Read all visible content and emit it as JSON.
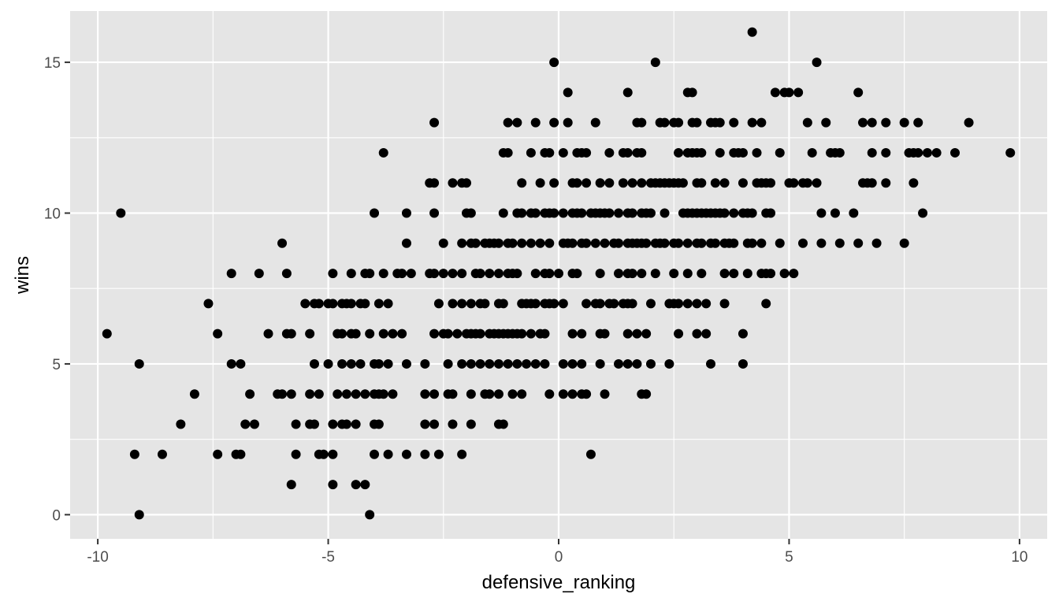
{
  "colors": {
    "panel_background": "#e5e5e5",
    "grid_major": "#ffffff",
    "point": "#000000",
    "tick_text": "#4d4d4d"
  },
  "chart_data": {
    "type": "scatter",
    "title": "",
    "xlabel": "defensive_ranking",
    "ylabel": "wins",
    "xlim": [
      -10.6,
      10.6
    ],
    "ylim": [
      -0.8,
      16.7
    ],
    "x_ticks": [
      -10,
      -5,
      0,
      5,
      10
    ],
    "x_tick_labels": [
      "-10",
      "-5",
      "0",
      "5",
      "10"
    ],
    "y_ticks": [
      0,
      5,
      10,
      15
    ],
    "y_tick_labels": [
      "0",
      "5",
      "10",
      "15"
    ],
    "grid": true,
    "legend": "none",
    "points": [
      [
        4.2,
        16
      ],
      [
        -0.1,
        15
      ],
      [
        2.1,
        15
      ],
      [
        5.6,
        15
      ],
      [
        0.2,
        14
      ],
      [
        1.5,
        14
      ],
      [
        2.8,
        14
      ],
      [
        2.9,
        14
      ],
      [
        4.7,
        14
      ],
      [
        4.9,
        14
      ],
      [
        5.0,
        14
      ],
      [
        5.2,
        14
      ],
      [
        6.5,
        14
      ],
      [
        -2.7,
        13
      ],
      [
        -1.1,
        13
      ],
      [
        -0.9,
        13
      ],
      [
        -0.5,
        13
      ],
      [
        -0.1,
        13
      ],
      [
        0.2,
        13
      ],
      [
        0.8,
        13
      ],
      [
        1.7,
        13
      ],
      [
        1.8,
        13
      ],
      [
        2.2,
        13
      ],
      [
        2.3,
        13
      ],
      [
        2.5,
        13
      ],
      [
        2.6,
        13
      ],
      [
        2.9,
        13
      ],
      [
        3.0,
        13
      ],
      [
        3.3,
        13
      ],
      [
        3.4,
        13
      ],
      [
        3.5,
        13
      ],
      [
        3.8,
        13
      ],
      [
        4.2,
        13
      ],
      [
        4.4,
        13
      ],
      [
        5.4,
        13
      ],
      [
        5.8,
        13
      ],
      [
        6.6,
        13
      ],
      [
        6.8,
        13
      ],
      [
        7.1,
        13
      ],
      [
        7.5,
        13
      ],
      [
        7.8,
        13
      ],
      [
        8.9,
        13
      ],
      [
        -3.8,
        12
      ],
      [
        -1.2,
        12
      ],
      [
        -1.1,
        12
      ],
      [
        -0.6,
        12
      ],
      [
        -0.3,
        12
      ],
      [
        -0.2,
        12
      ],
      [
        0.1,
        12
      ],
      [
        0.4,
        12
      ],
      [
        0.5,
        12
      ],
      [
        0.6,
        12
      ],
      [
        1.1,
        12
      ],
      [
        1.4,
        12
      ],
      [
        1.5,
        12
      ],
      [
        1.7,
        12
      ],
      [
        1.8,
        12
      ],
      [
        2.6,
        12
      ],
      [
        2.8,
        12
      ],
      [
        2.9,
        12
      ],
      [
        3.0,
        12
      ],
      [
        3.1,
        12
      ],
      [
        3.5,
        12
      ],
      [
        3.8,
        12
      ],
      [
        3.9,
        12
      ],
      [
        4.0,
        12
      ],
      [
        4.3,
        12
      ],
      [
        4.8,
        12
      ],
      [
        5.5,
        12
      ],
      [
        5.9,
        12
      ],
      [
        6.0,
        12
      ],
      [
        6.1,
        12
      ],
      [
        6.8,
        12
      ],
      [
        7.1,
        12
      ],
      [
        7.6,
        12
      ],
      [
        7.7,
        12
      ],
      [
        7.8,
        12
      ],
      [
        8.0,
        12
      ],
      [
        8.2,
        12
      ],
      [
        8.6,
        12
      ],
      [
        9.8,
        12
      ],
      [
        -2.8,
        11
      ],
      [
        -2.7,
        11
      ],
      [
        -2.3,
        11
      ],
      [
        -2.1,
        11
      ],
      [
        -2.0,
        11
      ],
      [
        -0.8,
        11
      ],
      [
        -0.4,
        11
      ],
      [
        -0.1,
        11
      ],
      [
        0.3,
        11
      ],
      [
        0.4,
        11
      ],
      [
        0.6,
        11
      ],
      [
        0.9,
        11
      ],
      [
        1.1,
        11
      ],
      [
        1.4,
        11
      ],
      [
        1.6,
        11
      ],
      [
        1.8,
        11
      ],
      [
        2.0,
        11
      ],
      [
        2.1,
        11
      ],
      [
        2.2,
        11
      ],
      [
        2.3,
        11
      ],
      [
        2.4,
        11
      ],
      [
        2.5,
        11
      ],
      [
        2.6,
        11
      ],
      [
        2.7,
        11
      ],
      [
        3.0,
        11
      ],
      [
        3.1,
        11
      ],
      [
        3.4,
        11
      ],
      [
        3.6,
        11
      ],
      [
        4.0,
        11
      ],
      [
        4.3,
        11
      ],
      [
        4.4,
        11
      ],
      [
        4.5,
        11
      ],
      [
        4.6,
        11
      ],
      [
        5.0,
        11
      ],
      [
        5.1,
        11
      ],
      [
        5.3,
        11
      ],
      [
        5.4,
        11
      ],
      [
        5.6,
        11
      ],
      [
        6.6,
        11
      ],
      [
        6.7,
        11
      ],
      [
        6.8,
        11
      ],
      [
        7.1,
        11
      ],
      [
        7.7,
        11
      ],
      [
        -9.5,
        10
      ],
      [
        -4.0,
        10
      ],
      [
        -3.3,
        10
      ],
      [
        -2.7,
        10
      ],
      [
        -2.0,
        10
      ],
      [
        -1.9,
        10
      ],
      [
        -1.2,
        10
      ],
      [
        -0.9,
        10
      ],
      [
        -0.8,
        10
      ],
      [
        -0.6,
        10
      ],
      [
        -0.5,
        10
      ],
      [
        -0.3,
        10
      ],
      [
        -0.2,
        10
      ],
      [
        -0.1,
        10
      ],
      [
        0.1,
        10
      ],
      [
        0.3,
        10
      ],
      [
        0.4,
        10
      ],
      [
        0.5,
        10
      ],
      [
        0.7,
        10
      ],
      [
        0.8,
        10
      ],
      [
        0.9,
        10
      ],
      [
        1.0,
        10
      ],
      [
        1.1,
        10
      ],
      [
        1.3,
        10
      ],
      [
        1.5,
        10
      ],
      [
        1.6,
        10
      ],
      [
        1.8,
        10
      ],
      [
        1.9,
        10
      ],
      [
        2.0,
        10
      ],
      [
        2.3,
        10
      ],
      [
        2.7,
        10
      ],
      [
        2.8,
        10
      ],
      [
        2.9,
        10
      ],
      [
        3.0,
        10
      ],
      [
        3.1,
        10
      ],
      [
        3.2,
        10
      ],
      [
        3.3,
        10
      ],
      [
        3.4,
        10
      ],
      [
        3.5,
        10
      ],
      [
        3.6,
        10
      ],
      [
        3.8,
        10
      ],
      [
        4.0,
        10
      ],
      [
        4.1,
        10
      ],
      [
        4.2,
        10
      ],
      [
        4.5,
        10
      ],
      [
        4.6,
        10
      ],
      [
        5.7,
        10
      ],
      [
        6.0,
        10
      ],
      [
        6.4,
        10
      ],
      [
        7.9,
        10
      ],
      [
        -6.0,
        9
      ],
      [
        -3.3,
        9
      ],
      [
        -2.5,
        9
      ],
      [
        -2.1,
        9
      ],
      [
        -1.9,
        9
      ],
      [
        -1.8,
        9
      ],
      [
        -1.6,
        9
      ],
      [
        -1.5,
        9
      ],
      [
        -1.4,
        9
      ],
      [
        -1.3,
        9
      ],
      [
        -1.1,
        9
      ],
      [
        -1.0,
        9
      ],
      [
        -0.8,
        9
      ],
      [
        -0.6,
        9
      ],
      [
        -0.4,
        9
      ],
      [
        -0.2,
        9
      ],
      [
        0.1,
        9
      ],
      [
        0.2,
        9
      ],
      [
        0.3,
        9
      ],
      [
        0.5,
        9
      ],
      [
        0.6,
        9
      ],
      [
        0.8,
        9
      ],
      [
        1.0,
        9
      ],
      [
        1.2,
        9
      ],
      [
        1.3,
        9
      ],
      [
        1.5,
        9
      ],
      [
        1.6,
        9
      ],
      [
        1.7,
        9
      ],
      [
        1.8,
        9
      ],
      [
        1.9,
        9
      ],
      [
        2.1,
        9
      ],
      [
        2.2,
        9
      ],
      [
        2.3,
        9
      ],
      [
        2.5,
        9
      ],
      [
        2.6,
        9
      ],
      [
        2.8,
        9
      ],
      [
        3.0,
        9
      ],
      [
        3.1,
        9
      ],
      [
        3.3,
        9
      ],
      [
        3.4,
        9
      ],
      [
        3.6,
        9
      ],
      [
        3.7,
        9
      ],
      [
        3.8,
        9
      ],
      [
        4.1,
        9
      ],
      [
        4.2,
        9
      ],
      [
        4.4,
        9
      ],
      [
        4.8,
        9
      ],
      [
        5.3,
        9
      ],
      [
        5.7,
        9
      ],
      [
        6.1,
        9
      ],
      [
        6.5,
        9
      ],
      [
        6.9,
        9
      ],
      [
        7.5,
        9
      ],
      [
        -7.1,
        8
      ],
      [
        -6.5,
        8
      ],
      [
        -5.9,
        8
      ],
      [
        -4.9,
        8
      ],
      [
        -4.5,
        8
      ],
      [
        -4.2,
        8
      ],
      [
        -4.1,
        8
      ],
      [
        -3.8,
        8
      ],
      [
        -3.5,
        8
      ],
      [
        -3.4,
        8
      ],
      [
        -3.2,
        8
      ],
      [
        -2.8,
        8
      ],
      [
        -2.7,
        8
      ],
      [
        -2.5,
        8
      ],
      [
        -2.3,
        8
      ],
      [
        -2.1,
        8
      ],
      [
        -1.8,
        8
      ],
      [
        -1.7,
        8
      ],
      [
        -1.5,
        8
      ],
      [
        -1.3,
        8
      ],
      [
        -1.1,
        8
      ],
      [
        -1.0,
        8
      ],
      [
        -0.9,
        8
      ],
      [
        -0.5,
        8
      ],
      [
        -0.3,
        8
      ],
      [
        -0.2,
        8
      ],
      [
        0.0,
        8
      ],
      [
        0.3,
        8
      ],
      [
        0.4,
        8
      ],
      [
        0.9,
        8
      ],
      [
        1.3,
        8
      ],
      [
        1.5,
        8
      ],
      [
        1.6,
        8
      ],
      [
        1.8,
        8
      ],
      [
        2.1,
        8
      ],
      [
        2.5,
        8
      ],
      [
        2.8,
        8
      ],
      [
        3.1,
        8
      ],
      [
        3.6,
        8
      ],
      [
        3.8,
        8
      ],
      [
        4.1,
        8
      ],
      [
        4.4,
        8
      ],
      [
        4.5,
        8
      ],
      [
        4.6,
        8
      ],
      [
        4.9,
        8
      ],
      [
        5.1,
        8
      ],
      [
        -7.6,
        7
      ],
      [
        -5.5,
        7
      ],
      [
        -5.3,
        7
      ],
      [
        -5.2,
        7
      ],
      [
        -5.0,
        7
      ],
      [
        -4.9,
        7
      ],
      [
        -4.7,
        7
      ],
      [
        -4.6,
        7
      ],
      [
        -4.5,
        7
      ],
      [
        -4.3,
        7
      ],
      [
        -4.2,
        7
      ],
      [
        -3.9,
        7
      ],
      [
        -3.7,
        7
      ],
      [
        -2.6,
        7
      ],
      [
        -2.3,
        7
      ],
      [
        -2.1,
        7
      ],
      [
        -1.9,
        7
      ],
      [
        -1.7,
        7
      ],
      [
        -1.6,
        7
      ],
      [
        -1.3,
        7
      ],
      [
        -1.2,
        7
      ],
      [
        -0.8,
        7
      ],
      [
        -0.7,
        7
      ],
      [
        -0.6,
        7
      ],
      [
        -0.5,
        7
      ],
      [
        -0.3,
        7
      ],
      [
        -0.2,
        7
      ],
      [
        -0.1,
        7
      ],
      [
        0.1,
        7
      ],
      [
        0.6,
        7
      ],
      [
        0.8,
        7
      ],
      [
        0.9,
        7
      ],
      [
        1.1,
        7
      ],
      [
        1.2,
        7
      ],
      [
        1.4,
        7
      ],
      [
        1.5,
        7
      ],
      [
        1.6,
        7
      ],
      [
        2.0,
        7
      ],
      [
        2.4,
        7
      ],
      [
        2.5,
        7
      ],
      [
        2.6,
        7
      ],
      [
        2.8,
        7
      ],
      [
        3.0,
        7
      ],
      [
        3.2,
        7
      ],
      [
        3.6,
        7
      ],
      [
        4.5,
        7
      ],
      [
        -9.8,
        6
      ],
      [
        -7.4,
        6
      ],
      [
        -6.3,
        6
      ],
      [
        -5.9,
        6
      ],
      [
        -5.8,
        6
      ],
      [
        -5.4,
        6
      ],
      [
        -4.8,
        6
      ],
      [
        -4.7,
        6
      ],
      [
        -4.5,
        6
      ],
      [
        -4.4,
        6
      ],
      [
        -4.1,
        6
      ],
      [
        -3.8,
        6
      ],
      [
        -3.6,
        6
      ],
      [
        -3.4,
        6
      ],
      [
        -2.7,
        6
      ],
      [
        -2.5,
        6
      ],
      [
        -2.4,
        6
      ],
      [
        -2.2,
        6
      ],
      [
        -2.0,
        6
      ],
      [
        -1.9,
        6
      ],
      [
        -1.8,
        6
      ],
      [
        -1.7,
        6
      ],
      [
        -1.5,
        6
      ],
      [
        -1.4,
        6
      ],
      [
        -1.3,
        6
      ],
      [
        -1.2,
        6
      ],
      [
        -1.1,
        6
      ],
      [
        -1.0,
        6
      ],
      [
        -0.9,
        6
      ],
      [
        -0.8,
        6
      ],
      [
        -0.6,
        6
      ],
      [
        -0.4,
        6
      ],
      [
        -0.3,
        6
      ],
      [
        0.3,
        6
      ],
      [
        0.5,
        6
      ],
      [
        0.9,
        6
      ],
      [
        1.0,
        6
      ],
      [
        1.5,
        6
      ],
      [
        1.7,
        6
      ],
      [
        1.9,
        6
      ],
      [
        2.6,
        6
      ],
      [
        3.0,
        6
      ],
      [
        3.2,
        6
      ],
      [
        4.0,
        6
      ],
      [
        -9.1,
        5
      ],
      [
        -7.1,
        5
      ],
      [
        -6.9,
        5
      ],
      [
        -5.3,
        5
      ],
      [
        -5.0,
        5
      ],
      [
        -4.7,
        5
      ],
      [
        -4.5,
        5
      ],
      [
        -4.3,
        5
      ],
      [
        -4.0,
        5
      ],
      [
        -3.9,
        5
      ],
      [
        -3.7,
        5
      ],
      [
        -3.3,
        5
      ],
      [
        -2.9,
        5
      ],
      [
        -2.4,
        5
      ],
      [
        -2.1,
        5
      ],
      [
        -1.9,
        5
      ],
      [
        -1.7,
        5
      ],
      [
        -1.5,
        5
      ],
      [
        -1.3,
        5
      ],
      [
        -1.1,
        5
      ],
      [
        -0.9,
        5
      ],
      [
        -0.7,
        5
      ],
      [
        -0.5,
        5
      ],
      [
        -0.3,
        5
      ],
      [
        0.1,
        5
      ],
      [
        0.3,
        5
      ],
      [
        0.5,
        5
      ],
      [
        0.9,
        5
      ],
      [
        1.3,
        5
      ],
      [
        1.5,
        5
      ],
      [
        1.7,
        5
      ],
      [
        2.0,
        5
      ],
      [
        2.4,
        5
      ],
      [
        3.3,
        5
      ],
      [
        4.0,
        5
      ],
      [
        -7.9,
        4
      ],
      [
        -6.7,
        4
      ],
      [
        -6.1,
        4
      ],
      [
        -6.0,
        4
      ],
      [
        -5.8,
        4
      ],
      [
        -5.4,
        4
      ],
      [
        -5.2,
        4
      ],
      [
        -4.8,
        4
      ],
      [
        -4.6,
        4
      ],
      [
        -4.4,
        4
      ],
      [
        -4.2,
        4
      ],
      [
        -4.0,
        4
      ],
      [
        -3.9,
        4
      ],
      [
        -3.8,
        4
      ],
      [
        -3.6,
        4
      ],
      [
        -2.9,
        4
      ],
      [
        -2.7,
        4
      ],
      [
        -2.4,
        4
      ],
      [
        -2.3,
        4
      ],
      [
        -1.9,
        4
      ],
      [
        -1.6,
        4
      ],
      [
        -1.5,
        4
      ],
      [
        -1.3,
        4
      ],
      [
        -1.0,
        4
      ],
      [
        -0.8,
        4
      ],
      [
        -0.2,
        4
      ],
      [
        0.1,
        4
      ],
      [
        0.3,
        4
      ],
      [
        0.5,
        4
      ],
      [
        0.6,
        4
      ],
      [
        1.0,
        4
      ],
      [
        1.8,
        4
      ],
      [
        1.9,
        4
      ],
      [
        -8.2,
        3
      ],
      [
        -6.8,
        3
      ],
      [
        -6.6,
        3
      ],
      [
        -5.7,
        3
      ],
      [
        -5.4,
        3
      ],
      [
        -5.3,
        3
      ],
      [
        -4.9,
        3
      ],
      [
        -4.7,
        3
      ],
      [
        -4.6,
        3
      ],
      [
        -4.4,
        3
      ],
      [
        -4.0,
        3
      ],
      [
        -3.9,
        3
      ],
      [
        -2.9,
        3
      ],
      [
        -2.7,
        3
      ],
      [
        -2.3,
        3
      ],
      [
        -1.9,
        3
      ],
      [
        -1.3,
        3
      ],
      [
        -1.2,
        3
      ],
      [
        -9.2,
        2
      ],
      [
        -8.6,
        2
      ],
      [
        -7.4,
        2
      ],
      [
        -7.0,
        2
      ],
      [
        -6.9,
        2
      ],
      [
        -5.7,
        2
      ],
      [
        -5.2,
        2
      ],
      [
        -5.1,
        2
      ],
      [
        -4.9,
        2
      ],
      [
        -4.0,
        2
      ],
      [
        -3.7,
        2
      ],
      [
        -3.3,
        2
      ],
      [
        -2.9,
        2
      ],
      [
        -2.6,
        2
      ],
      [
        -2.1,
        2
      ],
      [
        0.7,
        2
      ],
      [
        -5.8,
        1
      ],
      [
        -4.9,
        1
      ],
      [
        -4.4,
        1
      ],
      [
        -4.2,
        1
      ],
      [
        -9.1,
        0
      ],
      [
        -4.1,
        0
      ]
    ]
  }
}
